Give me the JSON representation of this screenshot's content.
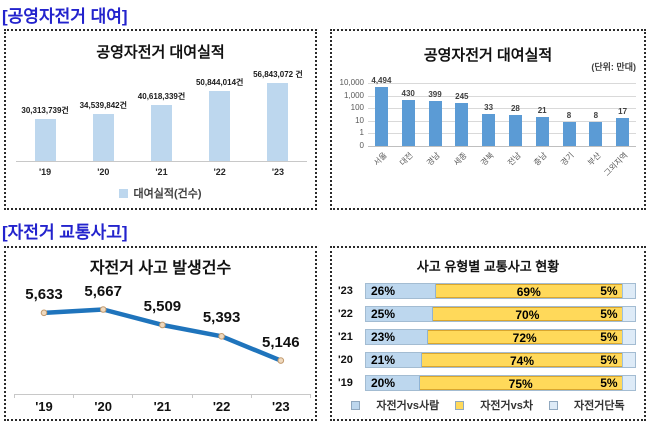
{
  "sections": {
    "rental": {
      "header": "[공영자전거 대여]"
    },
    "accident": {
      "header": "[자전거 교통사고]"
    }
  },
  "colors": {
    "header_blue": "#2323CD",
    "light_blue_bar": "#BDD7EE",
    "medium_blue_bar": "#5B9BD5",
    "line_blue": "#1F74BC",
    "yellow_bar": "#FFD95A",
    "pale_blue_bar": "#DEEBF7"
  },
  "chart_data": [
    {
      "id": "rental_trend",
      "type": "bar",
      "title": "공영자전거 대여실적",
      "categories": [
        "'19",
        "'20",
        "'21",
        "'22",
        "'23"
      ],
      "values": [
        30313739,
        34539842,
        40618339,
        50844014,
        56843072
      ],
      "data_labels": [
        "30,313,739건",
        "34,539,842건",
        "40,618,339건",
        "50,844,014건",
        "56,843,072 건"
      ],
      "legend_label": "대여실적(건수)",
      "legend_position": "bottom",
      "bar_color": "#BDD7EE",
      "ylim": [
        0,
        60000000
      ],
      "grid": false
    },
    {
      "id": "rental_by_region",
      "type": "bar",
      "title": "공영자전거 대여실적",
      "unit_label": "(단위: 만대)",
      "categories": [
        "서울",
        "대전",
        "경남",
        "세종",
        "경북",
        "전남",
        "충남",
        "경기",
        "부산",
        "그외지역"
      ],
      "values": [
        4494,
        430,
        399,
        245,
        33,
        28,
        21,
        8,
        8,
        17
      ],
      "data_labels": [
        "4,494",
        "430",
        "399",
        "245",
        "33",
        "28",
        "21",
        "8",
        "8",
        "17"
      ],
      "yscale": "log",
      "yticks": [
        "10,000",
        "1,000",
        "100",
        "10",
        "1",
        "0"
      ],
      "bar_color": "#5B9BD5",
      "grid": true
    },
    {
      "id": "accident_trend",
      "type": "line",
      "title": "자전거 사고 발생건수",
      "categories": [
        "'19",
        "'20",
        "'21",
        "'22",
        "'23"
      ],
      "values": [
        5633,
        5667,
        5509,
        5393,
        5146
      ],
      "data_labels": [
        "5,633",
        "5,667",
        "5,509",
        "5,393",
        "5,146"
      ],
      "line_color": "#1F74BC",
      "ylim": [
        4800,
        5900
      ],
      "grid": false
    },
    {
      "id": "accident_by_type",
      "type": "bar",
      "subtype": "stacked-horizontal",
      "title": "사고 유형별 교통사고 현황",
      "categories": [
        "'23",
        "'22",
        "'21",
        "'20",
        "'19"
      ],
      "series": [
        {
          "name": "자전거vs사람",
          "color": "#BDD7EE",
          "values": [
            26,
            25,
            23,
            21,
            20
          ]
        },
        {
          "name": "자전거vs차",
          "color": "#FFD95A",
          "values": [
            69,
            70,
            72,
            74,
            75
          ]
        },
        {
          "name": "자전거단독",
          "color": "#DEEBF7",
          "values": [
            5,
            5,
            5,
            5,
            5
          ]
        }
      ],
      "value_suffix": "%",
      "xlim": [
        0,
        100
      ],
      "legend_position": "bottom"
    }
  ]
}
